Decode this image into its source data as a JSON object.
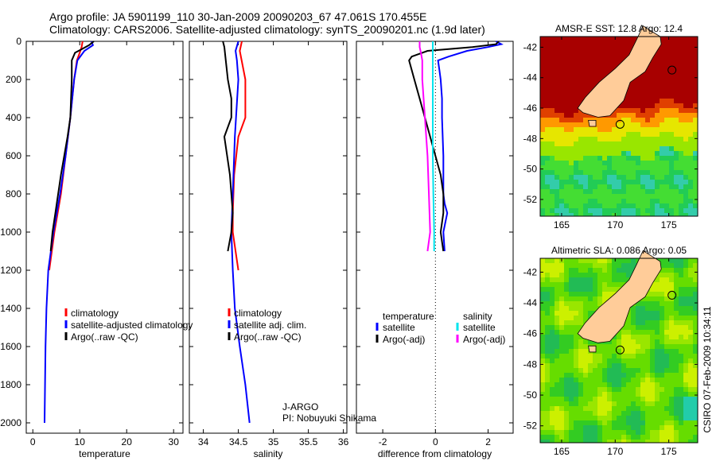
{
  "header": {
    "line1": "Argo profile: JA 5901199_110 30-Jan-2009 20090203_67 47.061S 170.455E",
    "line2": "Climatology: CARS2006. Satellite-adjusted climatology: synTS_20090201.nc (1.9d later)"
  },
  "footer_stamp": "CSIRO 07-Feb-2009 10:34:11",
  "credit": {
    "line1": "J-ARGO",
    "line2": "PI: Nobuyuki Shikama"
  },
  "colors": {
    "red": "#ff0000",
    "blue": "#0000ff",
    "black": "#000000",
    "cyan": "#00e5ee",
    "magenta": "#ff00ff",
    "land": "#ffcc99"
  },
  "chart_data": [
    {
      "type": "line",
      "xlabel": "temperature",
      "xlim": [
        -1.4,
        32
      ],
      "ylim": [
        0,
        2050
      ],
      "xticks": [
        0,
        10,
        20,
        30
      ],
      "yticks": [
        0,
        200,
        400,
        600,
        800,
        1000,
        1200,
        1400,
        1600,
        1800,
        2000
      ],
      "legend": [
        "climatology",
        "satellite-adjusted climatology",
        "Argo(..raw -QC)"
      ],
      "series": [
        {
          "name": "climatology",
          "color": "#ff0000",
          "depth": [
            0,
            30,
            60,
            100,
            200,
            400,
            600,
            800,
            1000,
            1200
          ],
          "values": [
            10.6,
            10.4,
            10,
            9.4,
            8.8,
            8,
            7,
            6,
            4.6,
            3.5
          ]
        },
        {
          "name": "satellite-adjusted climatology",
          "color": "#0000ff",
          "depth": [
            0,
            20,
            50,
            100,
            200,
            400,
            600,
            800,
            1000,
            1200,
            1400,
            1600,
            1800,
            2000
          ],
          "values": [
            12.5,
            12.8,
            11,
            9.5,
            8.8,
            8,
            7,
            5.8,
            4.4,
            3.3,
            2.9,
            2.7,
            2.6,
            2.5
          ]
        },
        {
          "name": "Argo(..raw -QC)",
          "color": "#000000",
          "depth": [
            0,
            20,
            40,
            60,
            100,
            200,
            400,
            500,
            700,
            900,
            1000,
            1100
          ],
          "values": [
            13,
            12,
            10.5,
            9,
            8.3,
            8.3,
            8,
            7.4,
            6,
            4.8,
            4.2,
            3.8
          ]
        }
      ]
    },
    {
      "type": "line",
      "xlabel": "salinity",
      "xlim": [
        33.8,
        36.05
      ],
      "ylim": [
        0,
        2050
      ],
      "xticks": [
        34,
        34.5,
        35,
        35.5,
        36
      ],
      "legend": [
        "climatology",
        "satellite adj. clim.",
        "Argo(..raw -QC)"
      ],
      "series": [
        {
          "name": "climatology",
          "color": "#ff0000",
          "depth": [
            0,
            50,
            200,
            400,
            500,
            700,
            900,
            1000,
            1100,
            1200
          ],
          "values": [
            34.55,
            34.52,
            34.6,
            34.6,
            34.5,
            34.44,
            34.42,
            34.42,
            34.46,
            34.5
          ]
        },
        {
          "name": "satellite adj. clim.",
          "color": "#0000ff",
          "depth": [
            0,
            50,
            100,
            200,
            500,
            800,
            1000,
            1200,
            1400,
            1600,
            1800,
            2000
          ],
          "values": [
            34.5,
            34.46,
            34.48,
            34.5,
            34.45,
            34.42,
            34.4,
            34.42,
            34.45,
            34.52,
            34.6,
            34.66
          ]
        },
        {
          "name": "Argo(..raw -QC)",
          "color": "#000000",
          "depth": [
            0,
            30,
            100,
            200,
            300,
            400,
            500,
            700,
            900,
            1000,
            1100
          ],
          "values": [
            34.28,
            34.3,
            34.32,
            34.35,
            34.4,
            34.4,
            34.3,
            34.38,
            34.42,
            34.4,
            34.35
          ]
        }
      ]
    },
    {
      "type": "line",
      "xlabel": "difference from climatology",
      "xlim": [
        -3,
        2.95
      ],
      "ylim": [
        0,
        2050
      ],
      "xticks": [
        -2,
        0,
        2
      ],
      "legend": {
        "temperature": [
          "satellite",
          "Argo(-adj)"
        ],
        "salinity": [
          "satellite",
          "Argo(-adj)"
        ],
        "temperature_header": "temperature",
        "salinity_header": "salinity"
      },
      "series": [
        {
          "name": "temperature satellite",
          "color": "#0000ff",
          "depth": [
            0,
            15,
            30,
            50,
            80,
            100,
            150,
            200,
            300,
            400,
            600,
            800,
            850,
            900,
            1000,
            1100
          ],
          "values": [
            2.3,
            2.5,
            2.0,
            1.2,
            0.5,
            0.1,
            0.15,
            0.2,
            0.25,
            0.25,
            0.3,
            0.3,
            0.35,
            0.45,
            0.3,
            0.35
          ]
        },
        {
          "name": "temperature Argo(-adj)",
          "color": "#000000",
          "depth": [
            0,
            15,
            30,
            50,
            80,
            100,
            150,
            200,
            300,
            400,
            500,
            600,
            700,
            800,
            900,
            1000,
            1100
          ],
          "values": [
            2.4,
            2.3,
            1.4,
            -0.3,
            -0.9,
            -1.0,
            -0.9,
            -0.8,
            -0.6,
            -0.4,
            -0.2,
            0.0,
            0.2,
            0.3,
            0.3,
            0.2,
            0.3
          ]
        },
        {
          "name": "salinity satellite",
          "color": "#00e5ee",
          "depth": [
            0,
            100,
            200,
            400,
            600,
            800,
            1000,
            1100
          ],
          "values": [
            -0.1,
            -0.1,
            -0.1,
            -0.1,
            -0.1,
            -0.08,
            -0.05,
            -0.05
          ]
        },
        {
          "name": "salinity Argo(-adj)",
          "color": "#ff00ff",
          "depth": [
            0,
            30,
            60,
            100,
            200,
            400,
            600,
            800,
            1000,
            1100
          ],
          "values": [
            -0.6,
            -0.6,
            -0.55,
            -0.5,
            -0.5,
            -0.4,
            -0.3,
            -0.25,
            -0.2,
            -0.3
          ]
        }
      ]
    },
    {
      "type": "heatmap",
      "title": "AMSR-E SST: 12.8 Argo: 12.4",
      "xlim": [
        163,
        177.7
      ],
      "ylim": [
        -53.1,
        -41.3
      ],
      "xticks": [
        165,
        170,
        175
      ],
      "yticks": [
        -42,
        -44,
        -46,
        -48,
        -50,
        -52
      ],
      "argo_position": [
        170.455,
        -47.061
      ]
    },
    {
      "type": "heatmap",
      "title": "Altimetric SLA: 0.086 Argo: 0.05",
      "xlim": [
        163,
        177.7
      ],
      "ylim": [
        -53.1,
        -41.1
      ],
      "xticks": [
        165,
        170,
        175
      ],
      "yticks": [
        -42,
        -44,
        -46,
        -48,
        -50,
        -52
      ],
      "argo_position": [
        170.455,
        -47.061
      ]
    }
  ]
}
